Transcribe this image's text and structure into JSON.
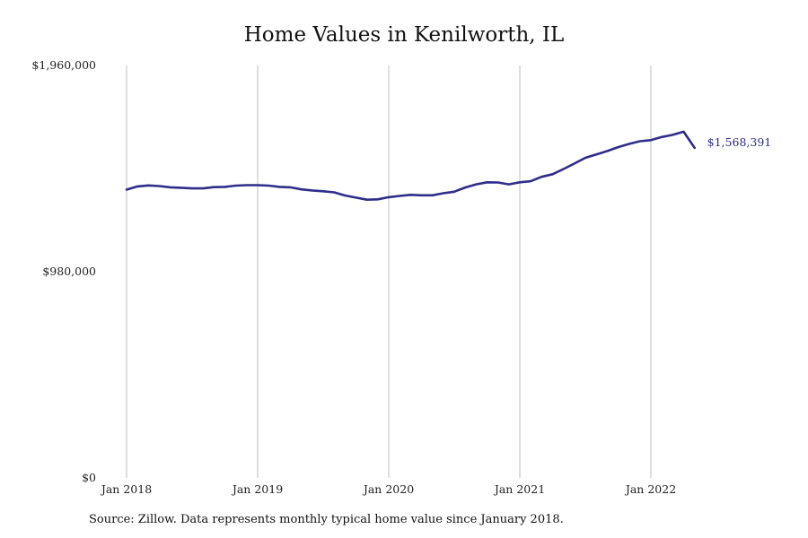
{
  "chart_data": {
    "type": "line",
    "title": "Home Values in Kenilworth, IL",
    "xlabel": "",
    "ylabel": "",
    "ylim": [
      0,
      1960000
    ],
    "y_ticks": [
      {
        "value": 0,
        "label": "$0"
      },
      {
        "value": 980000,
        "label": "$980,000"
      },
      {
        "value": 1960000,
        "label": "$1,960,000"
      }
    ],
    "x_ticks": [
      {
        "value": "2018-01",
        "label": "Jan 2018"
      },
      {
        "value": "2019-01",
        "label": "Jan 2019"
      },
      {
        "value": "2020-01",
        "label": "Jan 2020"
      },
      {
        "value": "2021-01",
        "label": "Jan 2021"
      },
      {
        "value": "2022-01",
        "label": "Jan 2022"
      }
    ],
    "grid": {
      "vertical": true,
      "horizontal": false
    },
    "series": [
      {
        "color": "#2e2d8a",
        "end_label": "$1,568,391",
        "x": [
          "2018-01",
          "2018-02",
          "2018-03",
          "2018-04",
          "2018-05",
          "2018-06",
          "2018-07",
          "2018-08",
          "2018-09",
          "2018-10",
          "2018-11",
          "2018-12",
          "2019-01",
          "2019-02",
          "2019-03",
          "2019-04",
          "2019-05",
          "2019-06",
          "2019-07",
          "2019-08",
          "2019-09",
          "2019-10",
          "2019-11",
          "2019-12",
          "2020-01",
          "2020-02",
          "2020-03",
          "2020-04",
          "2020-05",
          "2020-06",
          "2020-07",
          "2020-08",
          "2020-09",
          "2020-10",
          "2020-11",
          "2020-12",
          "2021-01",
          "2021-02",
          "2021-03",
          "2021-04",
          "2021-05",
          "2021-06",
          "2021-07",
          "2021-08",
          "2021-09",
          "2021-10",
          "2021-11",
          "2021-12",
          "2022-01",
          "2022-02",
          "2022-03",
          "2022-04",
          "2022-05"
        ],
        "values": [
          1370000,
          1385000,
          1390000,
          1387000,
          1381000,
          1379000,
          1376000,
          1376000,
          1382000,
          1383000,
          1389000,
          1391000,
          1391000,
          1389000,
          1383000,
          1381000,
          1371000,
          1366000,
          1362000,
          1357000,
          1342000,
          1332000,
          1322000,
          1324000,
          1334000,
          1340000,
          1345000,
          1343000,
          1343000,
          1353000,
          1360000,
          1380000,
          1395000,
          1405000,
          1404000,
          1395000,
          1405000,
          1410000,
          1431000,
          1443000,
          1468000,
          1494000,
          1521000,
          1537000,
          1553000,
          1572000,
          1587000,
          1600000,
          1605000,
          1620000,
          1630000,
          1645000,
          1568391
        ]
      }
    ]
  },
  "source_note": "Source: Zillow. Data represents monthly typical home value since January 2018."
}
